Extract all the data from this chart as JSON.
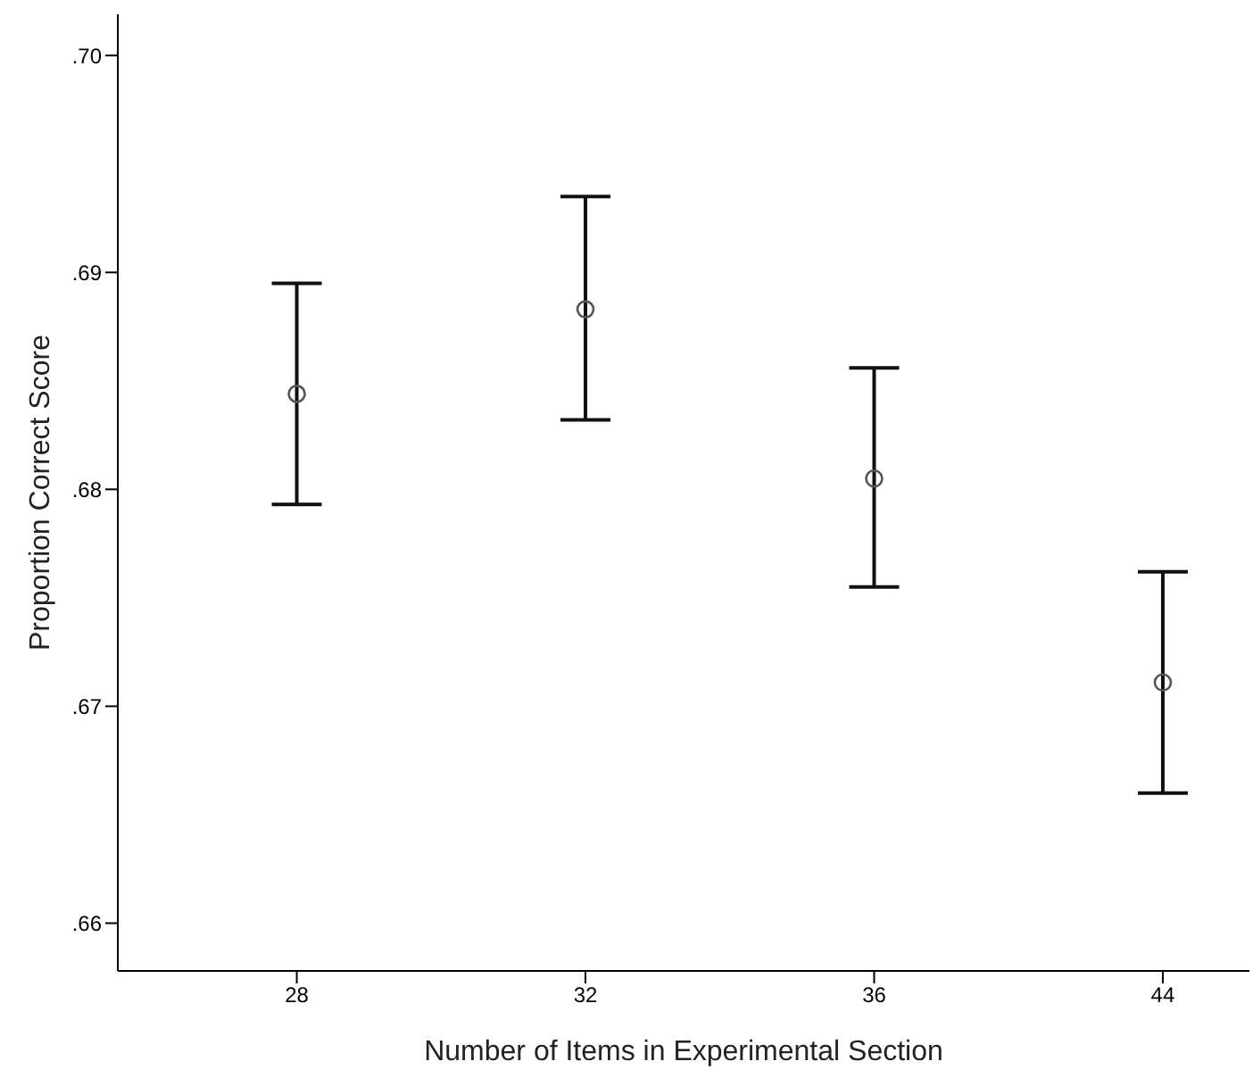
{
  "chart_data": {
    "type": "scatter",
    "xlabel": "Number of Items in Experimental Section",
    "ylabel": "Proportion Correct Score",
    "categories": [
      "28",
      "32",
      "36",
      "44"
    ],
    "series": [
      {
        "color": "#555555",
        "values": [
          0.6844,
          0.6883,
          0.6805,
          0.6711
        ],
        "errors": [
          [
            0.6793,
            0.6895
          ],
          [
            0.6832,
            0.6935
          ],
          [
            0.6755,
            0.6856
          ],
          [
            0.666,
            0.6762
          ]
        ]
      }
    ],
    "ylim": [
      0.6578,
      0.7019
    ],
    "yticks": [
      {
        "value": 0.66,
        "label": ".66"
      },
      {
        "value": 0.67,
        "label": ".67"
      },
      {
        "value": 0.68,
        "label": ".68"
      },
      {
        "value": 0.69,
        "label": ".69"
      },
      {
        "value": 0.7,
        "label": ".70"
      }
    ],
    "marker": "circle",
    "grid": false,
    "legend": false
  }
}
